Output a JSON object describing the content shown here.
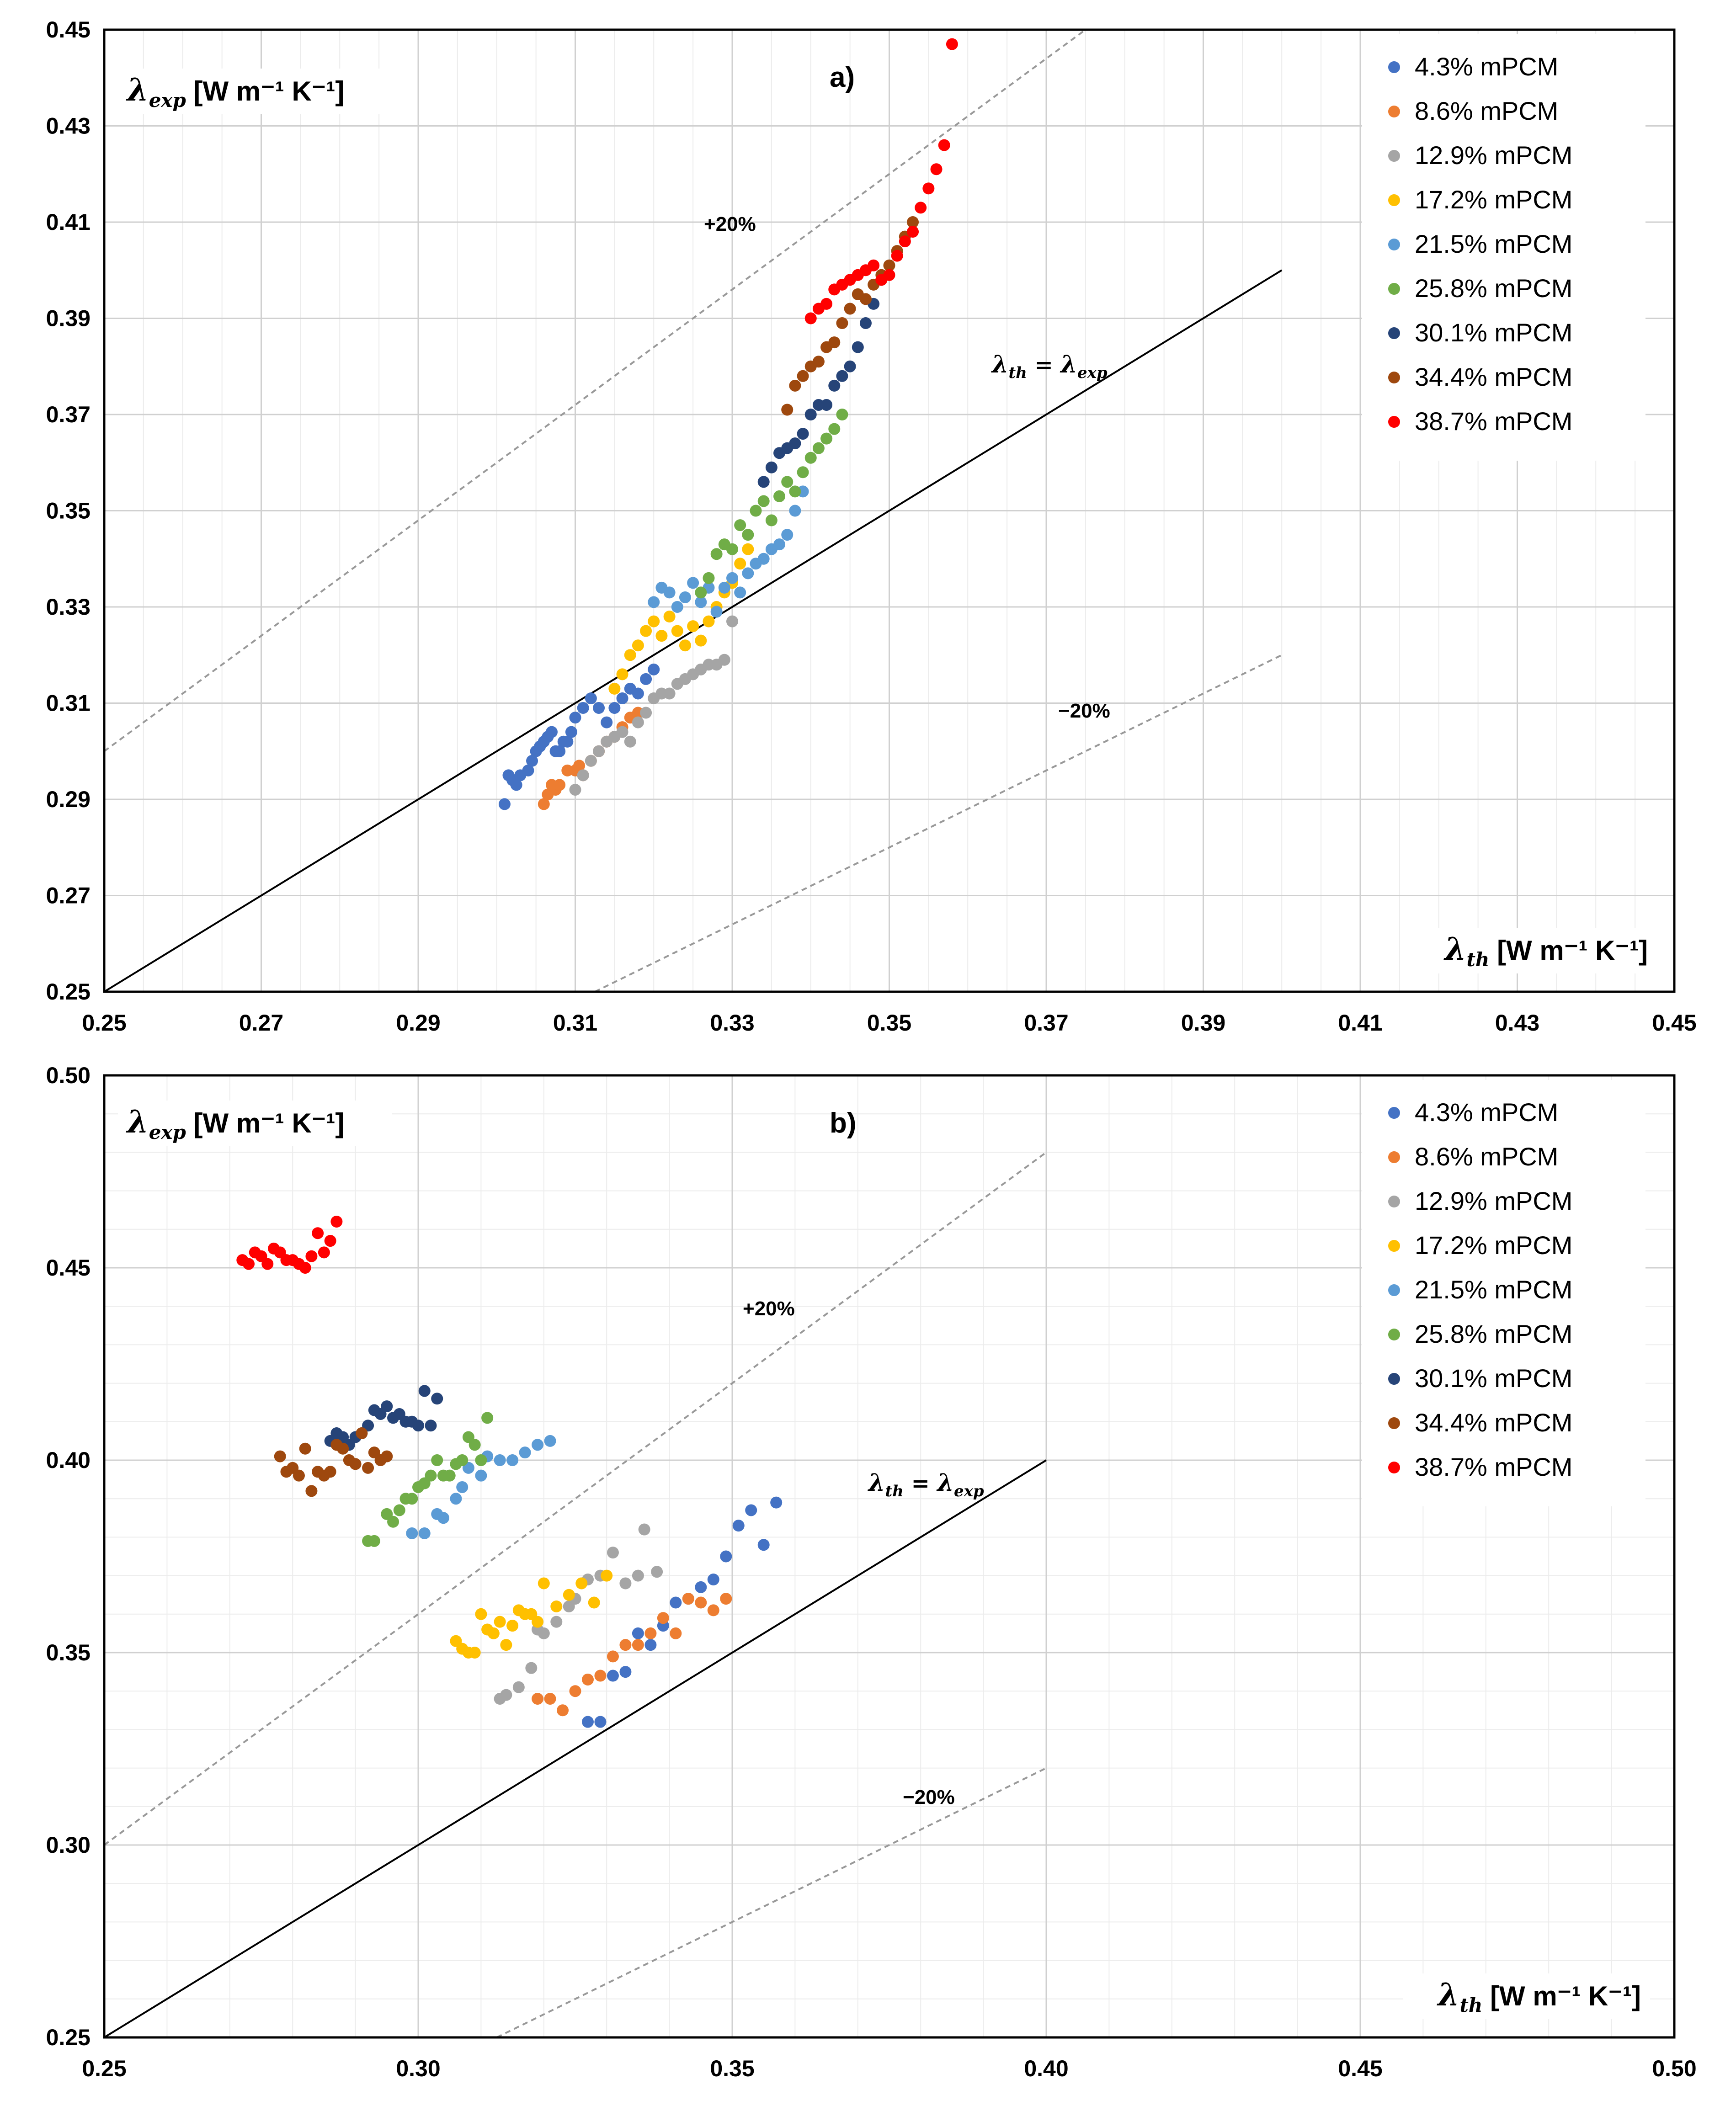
{
  "colors": {
    "4.3% mPCM": "#4472C4",
    "8.6% mPCM": "#ED7D31",
    "12.9% mPCM": "#A5A5A5",
    "17.2% mPCM": "#FFC000",
    "21.5% mPCM": "#5B9BD5",
    "25.8% mPCM": "#70AD47",
    "30.1% mPCM": "#264478",
    "34.4% mPCM": "#9E480E",
    "38.7% mPCM": "#FF0000"
  },
  "chart_data": [
    {
      "type": "scatter",
      "panel_label": "a)",
      "xlabel_symbol": "λ",
      "xlabel_sub": "th",
      "xlabel_unit": "[W m⁻¹ K⁻¹]",
      "ylabel_symbol": "λ",
      "ylabel_sub": "exp",
      "ylabel_unit": "[W m⁻¹ K⁻¹]",
      "xlim": [
        0.25,
        0.45
      ],
      "ylim": [
        0.25,
        0.45
      ],
      "xticks": [
        "0.25",
        "0.27",
        "0.29",
        "0.31",
        "0.33",
        "0.35",
        "0.37",
        "0.39",
        "0.41",
        "0.43",
        "0.45"
      ],
      "yticks": [
        "0.25",
        "0.27",
        "0.29",
        "0.31",
        "0.33",
        "0.35",
        "0.37",
        "0.39",
        "0.41",
        "0.43",
        "0.45"
      ],
      "annotations": {
        "plus": "+20%",
        "minus": "−20%",
        "eq_lhs": "λ",
        "eq_lhs_sub": "th",
        "eq_mid": " = ",
        "eq_rhs": "λ",
        "eq_rhs_sub": "exp"
      },
      "reference_lines": [
        {
          "name": "identity",
          "x": [
            0.25,
            0.4
          ],
          "y": [
            0.25,
            0.4
          ]
        },
        {
          "name": "plus20",
          "x": [
            0.25,
            0.375
          ],
          "y": [
            0.3,
            0.45
          ]
        },
        {
          "name": "minus20",
          "x": [
            0.3125,
            0.4
          ],
          "y": [
            0.25,
            0.32
          ]
        }
      ],
      "series": [
        {
          "name": "4.3% mPCM",
          "x": [
            0.301,
            0.3015,
            0.302,
            0.3025,
            0.303,
            0.304,
            0.3045,
            0.305,
            0.3055,
            0.306,
            0.3065,
            0.307,
            0.3075,
            0.308,
            0.3085,
            0.309,
            0.3095,
            0.31,
            0.311,
            0.312,
            0.313,
            0.314,
            0.315,
            0.316,
            0.317,
            0.318,
            0.319,
            0.32
          ],
          "y": [
            0.289,
            0.295,
            0.294,
            0.293,
            0.295,
            0.296,
            0.298,
            0.3,
            0.301,
            0.302,
            0.303,
            0.304,
            0.3,
            0.3,
            0.302,
            0.302,
            0.304,
            0.307,
            0.309,
            0.311,
            0.309,
            0.306,
            0.309,
            0.311,
            0.313,
            0.312,
            0.315,
            0.317
          ]
        },
        {
          "name": "8.6% mPCM",
          "x": [
            0.306,
            0.3065,
            0.307,
            0.3075,
            0.308,
            0.309,
            0.31,
            0.3105,
            0.311,
            0.312,
            0.313,
            0.314,
            0.315,
            0.316,
            0.317,
            0.318
          ],
          "y": [
            0.289,
            0.291,
            0.293,
            0.292,
            0.293,
            0.296,
            0.296,
            0.297,
            0.295,
            0.298,
            0.3,
            0.302,
            0.303,
            0.305,
            0.307,
            0.308
          ]
        },
        {
          "name": "12.9% mPCM",
          "x": [
            0.31,
            0.311,
            0.312,
            0.313,
            0.314,
            0.315,
            0.316,
            0.317,
            0.318,
            0.319,
            0.32,
            0.321,
            0.322,
            0.323,
            0.324,
            0.325,
            0.326,
            0.327,
            0.328,
            0.329,
            0.33
          ],
          "y": [
            0.292,
            0.295,
            0.298,
            0.3,
            0.302,
            0.303,
            0.304,
            0.302,
            0.306,
            0.308,
            0.311,
            0.312,
            0.312,
            0.314,
            0.315,
            0.316,
            0.317,
            0.318,
            0.318,
            0.319,
            0.327
          ]
        },
        {
          "name": "17.2% mPCM",
          "x": [
            0.315,
            0.316,
            0.317,
            0.318,
            0.319,
            0.32,
            0.321,
            0.322,
            0.323,
            0.324,
            0.325,
            0.326,
            0.327,
            0.328,
            0.329,
            0.33,
            0.331,
            0.332
          ],
          "y": [
            0.313,
            0.316,
            0.32,
            0.322,
            0.325,
            0.327,
            0.324,
            0.328,
            0.325,
            0.322,
            0.326,
            0.323,
            0.327,
            0.33,
            0.333,
            0.335,
            0.339,
            0.342
          ]
        },
        {
          "name": "21.5% mPCM",
          "x": [
            0.32,
            0.321,
            0.322,
            0.323,
            0.324,
            0.325,
            0.326,
            0.327,
            0.328,
            0.329,
            0.33,
            0.331,
            0.332,
            0.333,
            0.334,
            0.335,
            0.336,
            0.337,
            0.338,
            0.339
          ],
          "y": [
            0.331,
            0.334,
            0.333,
            0.33,
            0.332,
            0.335,
            0.331,
            0.334,
            0.329,
            0.334,
            0.336,
            0.333,
            0.337,
            0.339,
            0.34,
            0.342,
            0.343,
            0.345,
            0.35,
            0.354
          ]
        },
        {
          "name": "25.8% mPCM",
          "x": [
            0.326,
            0.327,
            0.328,
            0.329,
            0.33,
            0.331,
            0.332,
            0.333,
            0.334,
            0.335,
            0.336,
            0.337,
            0.338,
            0.339,
            0.34,
            0.341,
            0.342,
            0.343,
            0.344
          ],
          "y": [
            0.333,
            0.336,
            0.341,
            0.343,
            0.342,
            0.347,
            0.345,
            0.35,
            0.352,
            0.348,
            0.353,
            0.356,
            0.354,
            0.358,
            0.361,
            0.363,
            0.365,
            0.367,
            0.37
          ]
        },
        {
          "name": "30.1% mPCM",
          "x": [
            0.334,
            0.335,
            0.336,
            0.337,
            0.338,
            0.339,
            0.34,
            0.341,
            0.342,
            0.343,
            0.344,
            0.345,
            0.346,
            0.347,
            0.348,
            0.349
          ],
          "y": [
            0.356,
            0.359,
            0.362,
            0.363,
            0.364,
            0.366,
            0.37,
            0.372,
            0.372,
            0.376,
            0.378,
            0.38,
            0.384,
            0.389,
            0.393,
            0.398
          ]
        },
        {
          "name": "34.4% mPCM",
          "x": [
            0.337,
            0.338,
            0.339,
            0.34,
            0.341,
            0.342,
            0.343,
            0.344,
            0.345,
            0.346,
            0.347,
            0.348,
            0.349,
            0.35,
            0.351,
            0.352,
            0.353
          ],
          "y": [
            0.371,
            0.376,
            0.378,
            0.38,
            0.381,
            0.384,
            0.385,
            0.389,
            0.392,
            0.395,
            0.394,
            0.397,
            0.399,
            0.401,
            0.404,
            0.407,
            0.41
          ]
        },
        {
          "name": "38.7% mPCM",
          "x": [
            0.34,
            0.341,
            0.342,
            0.343,
            0.344,
            0.345,
            0.346,
            0.347,
            0.348,
            0.349,
            0.35,
            0.351,
            0.352,
            0.353,
            0.354,
            0.355,
            0.356,
            0.357,
            0.358
          ],
          "y": [
            0.39,
            0.392,
            0.393,
            0.396,
            0.397,
            0.398,
            0.399,
            0.4,
            0.401,
            0.398,
            0.399,
            0.403,
            0.406,
            0.408,
            0.413,
            0.417,
            0.421,
            0.426,
            0.447
          ]
        }
      ]
    },
    {
      "type": "scatter",
      "panel_label": "b)",
      "xlabel_symbol": "λ",
      "xlabel_sub": "th",
      "xlabel_unit": "[W m⁻¹ K⁻¹]",
      "ylabel_symbol": "λ",
      "ylabel_sub": "exp",
      "ylabel_unit": "[W m⁻¹ K⁻¹]",
      "xlim": [
        0.25,
        0.5
      ],
      "ylim": [
        0.25,
        0.5
      ],
      "xticks": [
        "0.25",
        "0.30",
        "0.35",
        "0.40",
        "0.45",
        "0.50"
      ],
      "yticks": [
        "0.25",
        "0.30",
        "0.35",
        "0.40",
        "0.45",
        "0.50"
      ],
      "annotations": {
        "plus": "+20%",
        "minus": "−20%",
        "eq_lhs": "λ",
        "eq_lhs_sub": "th",
        "eq_mid": " = ",
        "eq_rhs": "λ",
        "eq_rhs_sub": "exp"
      },
      "reference_lines": [
        {
          "name": "identity",
          "x": [
            0.25,
            0.4
          ],
          "y": [
            0.25,
            0.4
          ]
        },
        {
          "name": "plus20",
          "x": [
            0.25,
            0.4
          ],
          "y": [
            0.3,
            0.48
          ]
        },
        {
          "name": "minus20",
          "x": [
            0.3125,
            0.4
          ],
          "y": [
            0.25,
            0.32
          ]
        }
      ],
      "series": [
        {
          "name": "4.3% mPCM",
          "x": [
            0.327,
            0.329,
            0.331,
            0.333,
            0.335,
            0.337,
            0.339,
            0.341,
            0.343,
            0.345,
            0.347,
            0.349,
            0.351,
            0.353,
            0.355,
            0.357
          ],
          "y": [
            0.332,
            0.332,
            0.344,
            0.345,
            0.355,
            0.352,
            0.357,
            0.363,
            0.364,
            0.367,
            0.369,
            0.375,
            0.383,
            0.387,
            0.378,
            0.389
          ]
        },
        {
          "name": "8.6% mPCM",
          "x": [
            0.319,
            0.321,
            0.323,
            0.325,
            0.327,
            0.329,
            0.331,
            0.333,
            0.335,
            0.337,
            0.339,
            0.341,
            0.343,
            0.345,
            0.347,
            0.349
          ],
          "y": [
            0.338,
            0.338,
            0.335,
            0.34,
            0.343,
            0.344,
            0.349,
            0.352,
            0.352,
            0.355,
            0.359,
            0.355,
            0.364,
            0.363,
            0.361,
            0.364
          ]
        },
        {
          "name": "12.9% mPCM",
          "x": [
            0.313,
            0.314,
            0.316,
            0.318,
            0.319,
            0.32,
            0.322,
            0.324,
            0.325,
            0.327,
            0.329,
            0.331,
            0.333,
            0.335,
            0.336,
            0.338
          ],
          "y": [
            0.338,
            0.339,
            0.341,
            0.346,
            0.356,
            0.355,
            0.358,
            0.362,
            0.364,
            0.369,
            0.37,
            0.376,
            0.368,
            0.37,
            0.382,
            0.371
          ]
        },
        {
          "name": "17.2% mPCM",
          "x": [
            0.306,
            0.307,
            0.308,
            0.309,
            0.31,
            0.311,
            0.312,
            0.313,
            0.314,
            0.315,
            0.316,
            0.317,
            0.318,
            0.319,
            0.32,
            0.322,
            0.324,
            0.326,
            0.328,
            0.33
          ],
          "y": [
            0.353,
            0.351,
            0.35,
            0.35,
            0.36,
            0.356,
            0.355,
            0.358,
            0.352,
            0.357,
            0.361,
            0.36,
            0.36,
            0.358,
            0.368,
            0.362,
            0.365,
            0.368,
            0.363,
            0.37
          ]
        },
        {
          "name": "21.5% mPCM",
          "x": [
            0.299,
            0.301,
            0.303,
            0.304,
            0.306,
            0.307,
            0.308,
            0.31,
            0.311,
            0.313,
            0.315,
            0.317,
            0.319,
            0.321
          ],
          "y": [
            0.381,
            0.381,
            0.386,
            0.385,
            0.39,
            0.393,
            0.398,
            0.396,
            0.401,
            0.4,
            0.4,
            0.402,
            0.404,
            0.405
          ]
        },
        {
          "name": "25.8% mPCM",
          "x": [
            0.292,
            0.293,
            0.295,
            0.296,
            0.297,
            0.298,
            0.299,
            0.3,
            0.301,
            0.302,
            0.303,
            0.304,
            0.305,
            0.306,
            0.307,
            0.308,
            0.309,
            0.31,
            0.311
          ],
          "y": [
            0.379,
            0.379,
            0.386,
            0.384,
            0.387,
            0.39,
            0.39,
            0.393,
            0.394,
            0.396,
            0.4,
            0.396,
            0.396,
            0.399,
            0.4,
            0.406,
            0.404,
            0.4,
            0.411
          ]
        },
        {
          "name": "30.1% mPCM",
          "x": [
            0.286,
            0.287,
            0.288,
            0.289,
            0.29,
            0.291,
            0.292,
            0.293,
            0.294,
            0.295,
            0.296,
            0.297,
            0.298,
            0.299,
            0.3,
            0.301,
            0.302,
            0.303
          ],
          "y": [
            0.405,
            0.407,
            0.406,
            0.404,
            0.406,
            0.407,
            0.409,
            0.413,
            0.412,
            0.414,
            0.411,
            0.412,
            0.41,
            0.41,
            0.409,
            0.418,
            0.409,
            0.416
          ]
        },
        {
          "name": "34.4% mPCM",
          "x": [
            0.278,
            0.279,
            0.28,
            0.281,
            0.282,
            0.283,
            0.284,
            0.285,
            0.286,
            0.287,
            0.288,
            0.289,
            0.29,
            0.291,
            0.292,
            0.293,
            0.294,
            0.295
          ],
          "y": [
            0.401,
            0.397,
            0.398,
            0.396,
            0.403,
            0.392,
            0.397,
            0.396,
            0.397,
            0.404,
            0.403,
            0.4,
            0.399,
            0.407,
            0.398,
            0.402,
            0.4,
            0.401
          ]
        },
        {
          "name": "38.7% mPCM",
          "x": [
            0.272,
            0.273,
            0.274,
            0.275,
            0.276,
            0.277,
            0.278,
            0.279,
            0.28,
            0.281,
            0.282,
            0.283,
            0.284,
            0.285,
            0.286,
            0.287
          ],
          "y": [
            0.452,
            0.451,
            0.454,
            0.453,
            0.451,
            0.455,
            0.454,
            0.452,
            0.452,
            0.451,
            0.45,
            0.453,
            0.459,
            0.454,
            0.457,
            0.462
          ]
        }
      ]
    }
  ]
}
